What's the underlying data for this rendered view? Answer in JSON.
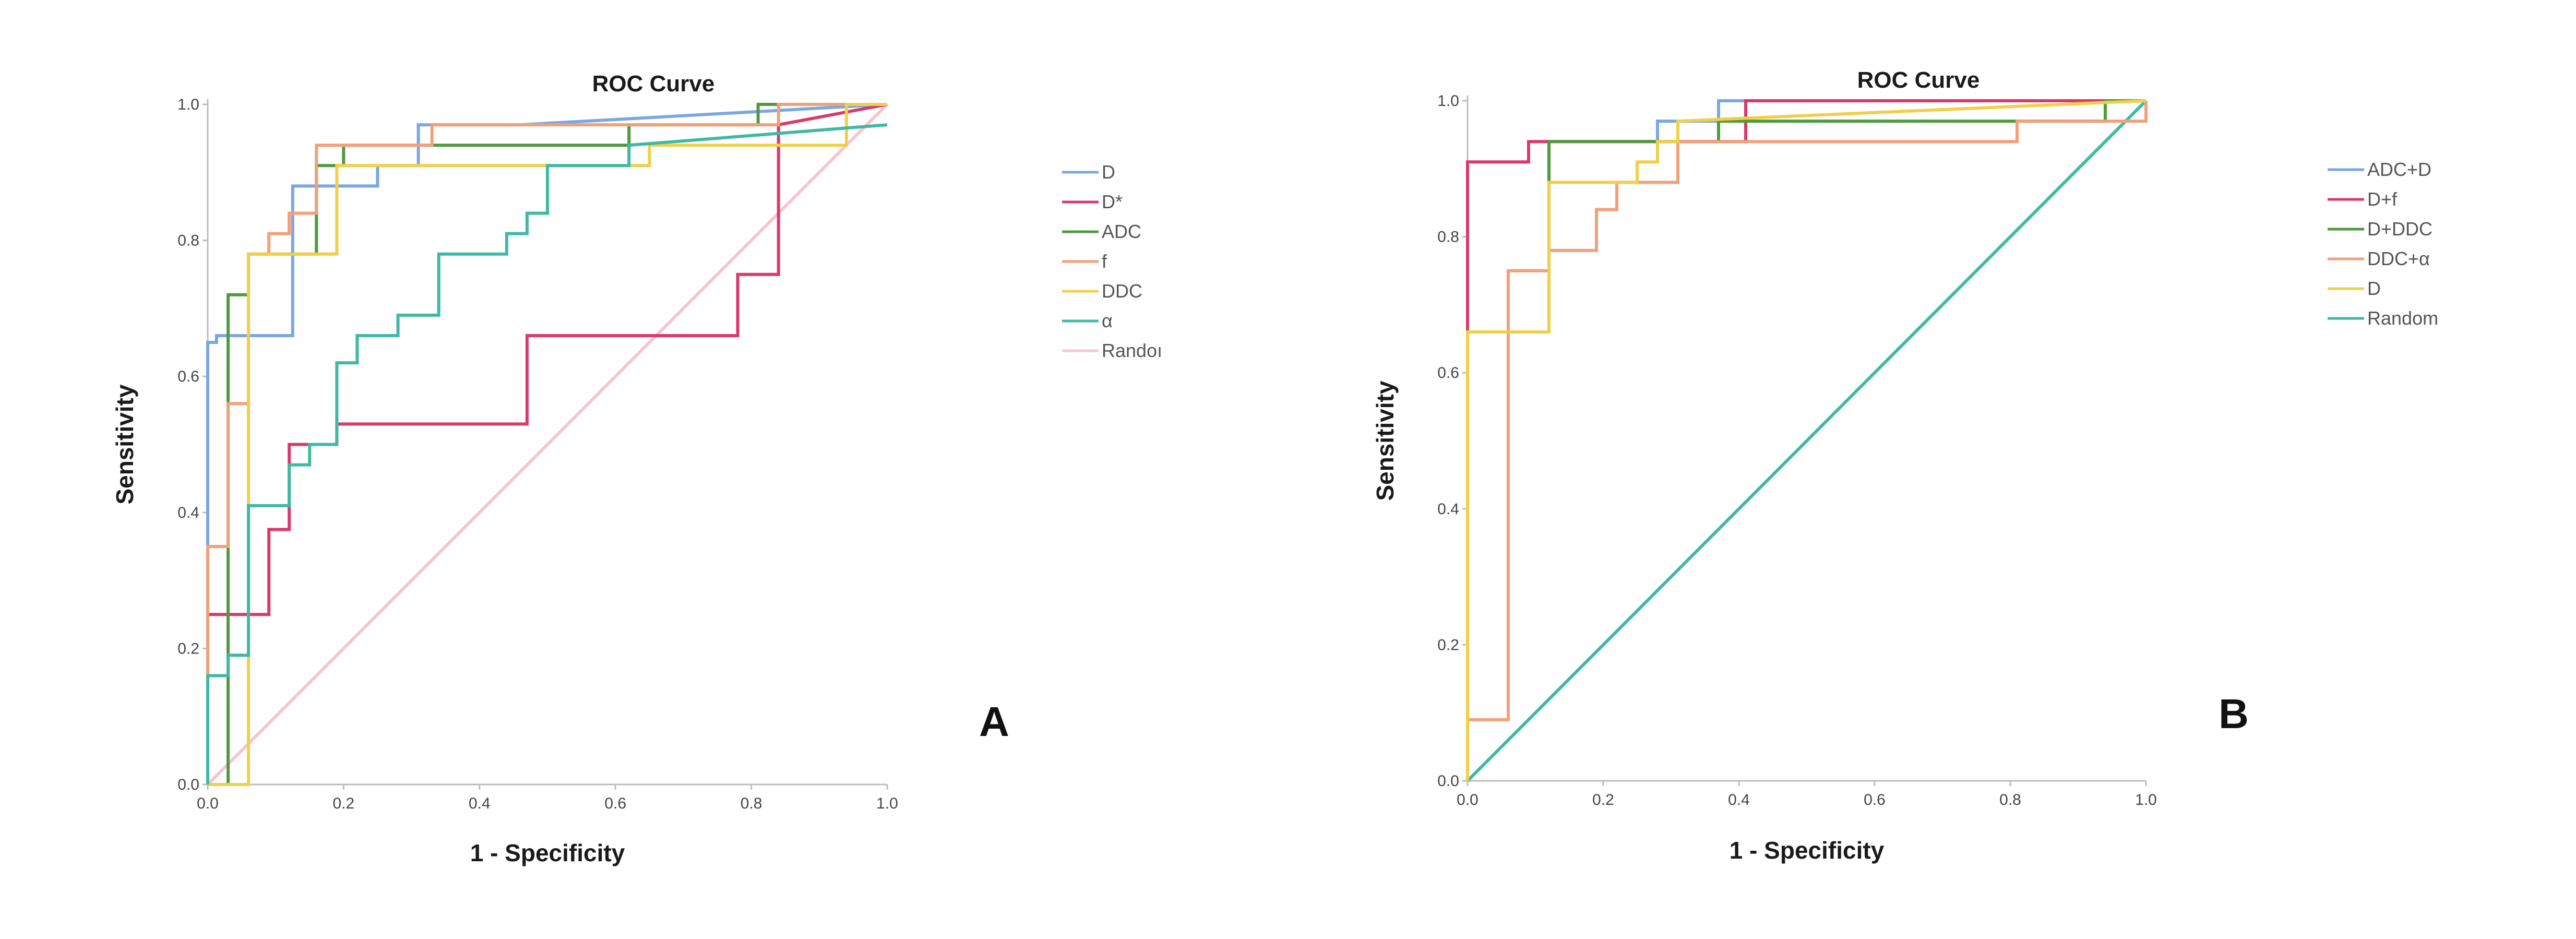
{
  "chart_data": [
    {
      "type": "line",
      "panel": "A",
      "title": "ROC Curve",
      "xlabel": "1 - Specificity",
      "ylabel": "Sensitivity",
      "xlim": [
        0,
        1
      ],
      "ylim": [
        0,
        1
      ],
      "xticks": [
        "0.0",
        "0.2",
        "0.4",
        "0.6",
        "0.8",
        "1.0"
      ],
      "yticks": [
        "0.0",
        "0.2",
        "0.4",
        "0.6",
        "0.8",
        "1.0"
      ],
      "legend_position": "right",
      "series": [
        {
          "name": "D",
          "color": "#7ba7e0",
          "x": [
            0,
            0,
            0.013,
            0.013,
            0.125,
            0.125,
            0.25,
            0.25,
            0.31,
            0.31,
            0.46,
            1.0
          ],
          "y": [
            0,
            0.65,
            0.65,
            0.66,
            0.66,
            0.88,
            0.88,
            0.91,
            0.91,
            0.97,
            0.97,
            1.0
          ]
        },
        {
          "name": "D*",
          "color": "#d93a6a",
          "x": [
            0,
            0,
            0.09,
            0.09,
            0.12,
            0.12,
            0.19,
            0.19,
            0.47,
            0.47,
            0.78,
            0.78,
            0.84,
            0.84,
            1.0
          ],
          "y": [
            0,
            0.25,
            0.25,
            0.375,
            0.375,
            0.5,
            0.5,
            0.53,
            0.53,
            0.66,
            0.66,
            0.75,
            0.75,
            0.97,
            1.0
          ]
        },
        {
          "name": "ADC",
          "color": "#4e9a3e",
          "x": [
            0,
            0.03,
            0.03,
            0.06,
            0.06,
            0.16,
            0.16,
            0.2,
            0.2,
            0.62,
            0.62,
            0.81,
            0.81,
            1.0
          ],
          "y": [
            0,
            0,
            0.72,
            0.72,
            0.78,
            0.78,
            0.91,
            0.91,
            0.94,
            0.94,
            0.97,
            0.97,
            1.0,
            1.0
          ]
        },
        {
          "name": "f",
          "color": "#f2a07a",
          "x": [
            0,
            0,
            0.03,
            0.03,
            0.06,
            0.06,
            0.09,
            0.09,
            0.12,
            0.12,
            0.16,
            0.16,
            0.33,
            0.33,
            0.84,
            0.84,
            1.0
          ],
          "y": [
            0,
            0.35,
            0.35,
            0.56,
            0.56,
            0.78,
            0.78,
            0.81,
            0.81,
            0.84,
            0.84,
            0.94,
            0.94,
            0.97,
            0.97,
            1.0,
            1.0
          ]
        },
        {
          "name": "DDC",
          "color": "#f0d04a",
          "x": [
            0,
            0.06,
            0.06,
            0.19,
            0.19,
            0.65,
            0.65,
            0.94,
            0.94,
            1.0
          ],
          "y": [
            0,
            0,
            0.78,
            0.78,
            0.91,
            0.91,
            0.94,
            0.94,
            1.0,
            1.0
          ]
        },
        {
          "name": "α",
          "color": "#3fb9a5",
          "x": [
            0,
            0,
            0.03,
            0.03,
            0.06,
            0.06,
            0.12,
            0.12,
            0.15,
            0.15,
            0.19,
            0.19,
            0.22,
            0.22,
            0.28,
            0.28,
            0.34,
            0.34,
            0.44,
            0.44,
            0.47,
            0.47,
            0.5,
            0.5,
            0.62,
            0.62,
            1.0
          ],
          "y": [
            0,
            0.16,
            0.16,
            0.19,
            0.19,
            0.41,
            0.41,
            0.47,
            0.47,
            0.5,
            0.5,
            0.62,
            0.62,
            0.66,
            0.66,
            0.69,
            0.69,
            0.78,
            0.78,
            0.81,
            0.81,
            0.84,
            0.84,
            0.91,
            0.91,
            0.94,
            0.97
          ]
        },
        {
          "name": "Random",
          "legend_label": "Randoı",
          "color": "#f7c4cf",
          "x": [
            0,
            1
          ],
          "y": [
            0,
            1
          ]
        }
      ]
    },
    {
      "type": "line",
      "panel": "B",
      "title": "ROC Curve",
      "xlabel": "1 - Specificity",
      "ylabel": "Sensitivity",
      "xlim": [
        0,
        1
      ],
      "ylim": [
        0,
        1
      ],
      "xticks": [
        "0.0",
        "0.2",
        "0.4",
        "0.6",
        "0.8",
        "1.0"
      ],
      "yticks": [
        "0.0",
        "0.2",
        "0.4",
        "0.6",
        "0.8",
        "1.0"
      ],
      "legend_position": "right",
      "series": [
        {
          "name": "ADC+D",
          "color": "#7ba7e0",
          "x": [
            0,
            0,
            0.12,
            0.12,
            0.28,
            0.28,
            0.37,
            0.37,
            1.0
          ],
          "y": [
            0,
            0.66,
            0.66,
            0.94,
            0.94,
            0.97,
            0.97,
            1.0,
            1.0
          ]
        },
        {
          "name": "D+f",
          "color": "#d93a6a",
          "x": [
            0,
            0,
            0.09,
            0.09,
            0.41,
            0.41,
            1.0
          ],
          "y": [
            0,
            0.91,
            0.91,
            0.94,
            0.94,
            1.0,
            1.0
          ]
        },
        {
          "name": "D+DDC",
          "color": "#4e9a3e",
          "x": [
            0,
            0,
            0.12,
            0.12,
            0.37,
            0.37,
            0.94,
            0.94,
            1.0
          ],
          "y": [
            0,
            0.66,
            0.66,
            0.94,
            0.94,
            0.97,
            0.97,
            1.0,
            1.0
          ]
        },
        {
          "name": "DDC+α",
          "color": "#f2a07a",
          "x": [
            0,
            0,
            0.06,
            0.06,
            0.09,
            0.09,
            0.12,
            0.12,
            0.19,
            0.19,
            0.22,
            0.22,
            0.25,
            0.25,
            0.31,
            0.31,
            0.81,
            0.81,
            1.0,
            1.0
          ],
          "y": [
            0,
            0.09,
            0.09,
            0.75,
            0.75,
            0.75,
            0.75,
            0.78,
            0.78,
            0.84,
            0.84,
            0.88,
            0.88,
            0.88,
            0.88,
            0.94,
            0.94,
            0.97,
            0.97,
            1.0
          ]
        },
        {
          "name": "D",
          "color": "#f0d04a",
          "x": [
            0,
            0,
            0.12,
            0.12,
            0.25,
            0.25,
            0.28,
            0.28,
            0.31,
            0.31,
            1.0
          ],
          "y": [
            0,
            0.66,
            0.66,
            0.88,
            0.88,
            0.91,
            0.91,
            0.94,
            0.94,
            0.97,
            1.0
          ]
        },
        {
          "name": "Random",
          "color": "#3fb9a5",
          "x": [
            0,
            1
          ],
          "y": [
            0,
            1
          ]
        }
      ]
    }
  ]
}
